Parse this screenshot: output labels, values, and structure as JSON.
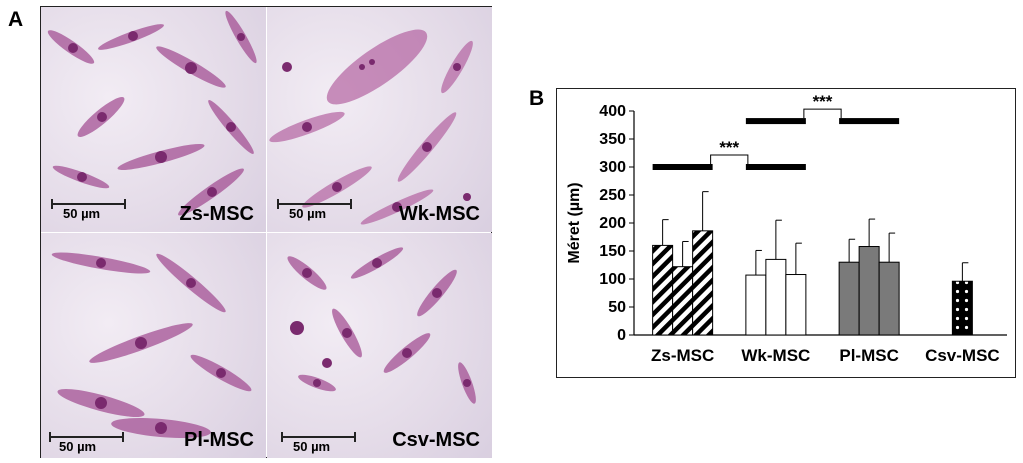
{
  "panel_a": {
    "letter": "A",
    "images": [
      {
        "label": "Zs-MSC",
        "scale": "50 µm"
      },
      {
        "label": "Wk-MSC",
        "scale": "50 µm"
      },
      {
        "label": "Pl-MSC",
        "scale": "50 µm"
      },
      {
        "label": "Csv-MSC",
        "scale": "50 µm"
      }
    ]
  },
  "panel_b": {
    "letter": "B"
  },
  "chart_data": {
    "type": "bar",
    "ylabel": "Méret (µm)",
    "ylim": [
      0,
      400
    ],
    "yticks": [
      0,
      50,
      100,
      150,
      200,
      250,
      300,
      350,
      400
    ],
    "categories": [
      "Zs-MSC",
      "Wk-MSC",
      "Pl-MSC",
      "Csv-MSC"
    ],
    "groups": [
      {
        "category": "Zs-MSC",
        "fill": "hatch",
        "values": [
          160,
          122,
          186
        ],
        "errors": [
          46,
          45,
          70
        ]
      },
      {
        "category": "Wk-MSC",
        "fill": "white",
        "values": [
          107,
          135,
          108
        ],
        "errors": [
          44,
          70,
          56
        ]
      },
      {
        "category": "Pl-MSC",
        "fill": "gray",
        "values": [
          130,
          158,
          130
        ],
        "errors": [
          41,
          49,
          52
        ]
      },
      {
        "category": "Csv-MSC",
        "fill": "dots",
        "values": [
          96
        ],
        "errors": [
          33
        ]
      }
    ],
    "significance": [
      {
        "label": "***",
        "between": [
          "Zs-MSC",
          "Wk-MSC"
        ],
        "y": 300
      },
      {
        "label": "***",
        "between": [
          "Wk-MSC",
          "Pl-MSC"
        ],
        "y": 382
      }
    ],
    "colors": {
      "gray": "#7a7a7a",
      "black": "#000000",
      "white": "#ffffff"
    }
  }
}
